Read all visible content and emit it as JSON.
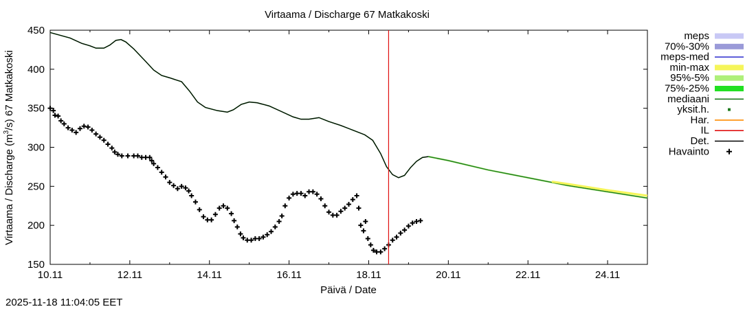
{
  "chart_data": {
    "type": "line",
    "title": "Virtaama / Discharge  67 Matkakoski",
    "xlabel": "Päivä / Date",
    "ylabel_main": "Virtaama / Discharge (m",
    "ylabel_sup": "3",
    "ylabel_tail": "/s)  67 Matkakoski",
    "timestamp": "2025-11-18 11:04:05 EET",
    "xlim": [
      10.0,
      25.0
    ],
    "ylim": [
      150,
      450
    ],
    "x_unit": "days (November, day-of-month)",
    "xticks": [
      {
        "value": 10,
        "label": "10.11"
      },
      {
        "value": 12,
        "label": "12.11"
      },
      {
        "value": 14,
        "label": "14.11"
      },
      {
        "value": 16,
        "label": "16.11"
      },
      {
        "value": 18,
        "label": "18.11"
      },
      {
        "value": 20,
        "label": "20.11"
      },
      {
        "value": 22,
        "label": "22.11"
      },
      {
        "value": 24,
        "label": "24.11"
      }
    ],
    "yticks": [
      150,
      200,
      250,
      300,
      350,
      400,
      450
    ],
    "forecast_start_x": 18.5,
    "legend": [
      {
        "label": "meps",
        "kind": "band",
        "color": "#c8c8f5"
      },
      {
        "label": "70%-30%",
        "kind": "band",
        "color": "#9a9ad8"
      },
      {
        "label": "meps-med",
        "kind": "line",
        "color": "#3a3ad0"
      },
      {
        "label": "min-max",
        "kind": "band",
        "color": "#f5f55a"
      },
      {
        "label": "95%-5%",
        "kind": "band",
        "color": "#aef07a"
      },
      {
        "label": "75%-25%",
        "kind": "band",
        "color": "#22e022"
      },
      {
        "label": "mediaani",
        "kind": "line",
        "color": "#1e7a1e"
      },
      {
        "label": "yksit.h.",
        "kind": "dot",
        "color": "#1e7a1e"
      },
      {
        "label": "Har.",
        "kind": "line",
        "color": "#ff8c00"
      },
      {
        "label": "IL",
        "kind": "line",
        "color": "#e01010"
      },
      {
        "label": "Det.",
        "kind": "line",
        "color": "#000000"
      },
      {
        "label": "Havainto",
        "kind": "cross",
        "color": "#000000"
      }
    ],
    "series": [
      {
        "name": "Det.",
        "color": "#000000",
        "points": [
          [
            10.0,
            447
          ],
          [
            10.5,
            440
          ],
          [
            10.8,
            433
          ],
          [
            11.0,
            430
          ],
          [
            11.15,
            427
          ],
          [
            11.35,
            427
          ],
          [
            11.5,
            431
          ],
          [
            11.65,
            437
          ],
          [
            11.78,
            438
          ],
          [
            11.9,
            435
          ],
          [
            12.1,
            426
          ],
          [
            12.4,
            410
          ],
          [
            12.6,
            399
          ],
          [
            12.8,
            392
          ],
          [
            13.0,
            389
          ],
          [
            13.3,
            384
          ],
          [
            13.5,
            372
          ],
          [
            13.7,
            358
          ],
          [
            13.9,
            351
          ],
          [
            14.2,
            347
          ],
          [
            14.45,
            345
          ],
          [
            14.6,
            348
          ],
          [
            14.8,
            355
          ],
          [
            15.0,
            358
          ],
          [
            15.2,
            357
          ],
          [
            15.5,
            353
          ],
          [
            15.8,
            346
          ],
          [
            16.1,
            339
          ],
          [
            16.3,
            336
          ],
          [
            16.5,
            336
          ],
          [
            16.75,
            338
          ],
          [
            17.0,
            333
          ],
          [
            17.3,
            328
          ],
          [
            17.6,
            322
          ],
          [
            17.9,
            316
          ],
          [
            18.1,
            309
          ],
          [
            18.3,
            292
          ],
          [
            18.45,
            275
          ],
          [
            18.6,
            265
          ],
          [
            18.75,
            261
          ],
          [
            18.9,
            264
          ],
          [
            19.05,
            274
          ],
          [
            19.2,
            282
          ],
          [
            19.35,
            287
          ],
          [
            19.5,
            288
          ]
        ]
      },
      {
        "name": "mediaani",
        "color": "#1e7a1e",
        "points": [
          [
            19.5,
            288
          ],
          [
            20.0,
            283
          ],
          [
            21.0,
            271
          ],
          [
            22.0,
            261
          ],
          [
            23.0,
            251
          ],
          [
            24.0,
            243
          ],
          [
            25.0,
            235
          ]
        ]
      },
      {
        "name": "min-max-upper",
        "color": "#f5f55a",
        "points": [
          [
            22.6,
            256
          ],
          [
            23.0,
            253
          ],
          [
            24.0,
            245
          ],
          [
            25.0,
            238
          ]
        ]
      },
      {
        "name": "Havainto",
        "color": "#000000",
        "points": [
          [
            10.0,
            350
          ],
          [
            10.08,
            347
          ],
          [
            10.12,
            341
          ],
          [
            10.2,
            340
          ],
          [
            10.27,
            334
          ],
          [
            10.35,
            330
          ],
          [
            10.45,
            325
          ],
          [
            10.55,
            322
          ],
          [
            10.65,
            319
          ],
          [
            10.75,
            324
          ],
          [
            10.85,
            327
          ],
          [
            10.95,
            326
          ],
          [
            11.05,
            322
          ],
          [
            11.15,
            317
          ],
          [
            11.25,
            313
          ],
          [
            11.35,
            309
          ],
          [
            11.45,
            304
          ],
          [
            11.55,
            299
          ],
          [
            11.62,
            294
          ],
          [
            11.7,
            291
          ],
          [
            11.8,
            289
          ],
          [
            11.95,
            289
          ],
          [
            12.1,
            289
          ],
          [
            12.2,
            289
          ],
          [
            12.3,
            287
          ],
          [
            12.4,
            287
          ],
          [
            12.5,
            287
          ],
          [
            12.55,
            283
          ],
          [
            12.6,
            279
          ],
          [
            12.7,
            274
          ],
          [
            12.8,
            268
          ],
          [
            12.9,
            262
          ],
          [
            13.0,
            255
          ],
          [
            13.1,
            251
          ],
          [
            13.2,
            247
          ],
          [
            13.3,
            250
          ],
          [
            13.4,
            248
          ],
          [
            13.48,
            244
          ],
          [
            13.55,
            238
          ],
          [
            13.65,
            230
          ],
          [
            13.75,
            220
          ],
          [
            13.85,
            211
          ],
          [
            13.95,
            207
          ],
          [
            14.05,
            207
          ],
          [
            14.15,
            214
          ],
          [
            14.25,
            222
          ],
          [
            14.35,
            225
          ],
          [
            14.45,
            222
          ],
          [
            14.55,
            215
          ],
          [
            14.62,
            206
          ],
          [
            14.7,
            198
          ],
          [
            14.78,
            189
          ],
          [
            14.85,
            184
          ],
          [
            14.95,
            181
          ],
          [
            15.05,
            181
          ],
          [
            15.15,
            183
          ],
          [
            15.25,
            183
          ],
          [
            15.35,
            185
          ],
          [
            15.45,
            188
          ],
          [
            15.55,
            192
          ],
          [
            15.65,
            198
          ],
          [
            15.75,
            205
          ],
          [
            15.82,
            212
          ],
          [
            15.9,
            225
          ],
          [
            16.0,
            235
          ],
          [
            16.1,
            240
          ],
          [
            16.2,
            241
          ],
          [
            16.3,
            241
          ],
          [
            16.4,
            238
          ],
          [
            16.5,
            243
          ],
          [
            16.6,
            243
          ],
          [
            16.7,
            240
          ],
          [
            16.8,
            234
          ],
          [
            16.9,
            225
          ],
          [
            17.0,
            217
          ],
          [
            17.1,
            213
          ],
          [
            17.2,
            213
          ],
          [
            17.3,
            218
          ],
          [
            17.4,
            222
          ],
          [
            17.5,
            227
          ],
          [
            17.6,
            233
          ],
          [
            17.7,
            238
          ],
          [
            17.75,
            222
          ],
          [
            17.8,
            200
          ],
          [
            17.87,
            193
          ],
          [
            17.92,
            205
          ],
          [
            17.98,
            183
          ],
          [
            18.05,
            175
          ],
          [
            18.12,
            168
          ],
          [
            18.2,
            166
          ],
          [
            18.3,
            166
          ],
          [
            18.4,
            170
          ],
          [
            18.5,
            175
          ],
          [
            18.6,
            181
          ],
          [
            18.7,
            185
          ],
          [
            18.8,
            190
          ],
          [
            18.9,
            194
          ],
          [
            19.0,
            199
          ],
          [
            19.1,
            203
          ],
          [
            19.2,
            205
          ],
          [
            19.3,
            206
          ]
        ]
      }
    ]
  }
}
